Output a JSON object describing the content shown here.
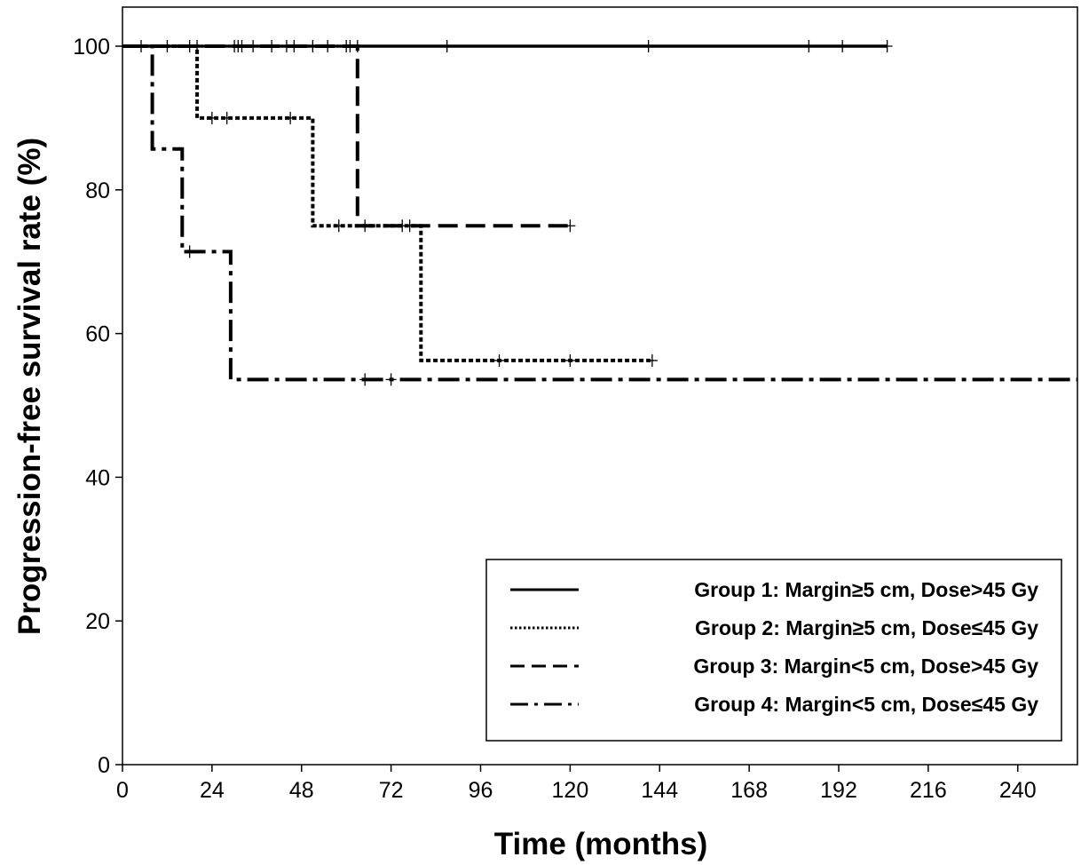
{
  "chart_data": {
    "type": "line",
    "subtype": "kaplan-meier",
    "title": "",
    "xlabel": "Time (months)",
    "ylabel": "Progression-free survival rate (%)",
    "xlim": [
      0,
      256
    ],
    "ylim": [
      0,
      105
    ],
    "xticks": [
      0,
      24,
      48,
      72,
      96,
      120,
      144,
      168,
      192,
      216,
      240
    ],
    "yticks": [
      0,
      20,
      40,
      60,
      80,
      100
    ],
    "grid": false,
    "legend_position": "bottom-right",
    "series": [
      {
        "name": "Group 1: Margin≥5 cm, Dose>45 Gy",
        "line_style": "solid",
        "color": "#000000",
        "steps": [
          [
            0,
            100
          ],
          [
            205,
            100
          ]
        ],
        "censored": [
          [
            5,
            100
          ],
          [
            12,
            100
          ],
          [
            18,
            100
          ],
          [
            20,
            100
          ],
          [
            30,
            100
          ],
          [
            31,
            100
          ],
          [
            32,
            100
          ],
          [
            35,
            100
          ],
          [
            40,
            100
          ],
          [
            44,
            100
          ],
          [
            46,
            100
          ],
          [
            51,
            100
          ],
          [
            55,
            100
          ],
          [
            60,
            100
          ],
          [
            61,
            100
          ],
          [
            63,
            100
          ],
          [
            87,
            100
          ],
          [
            141,
            100
          ],
          [
            184,
            100
          ],
          [
            193,
            100
          ],
          [
            205,
            100
          ]
        ]
      },
      {
        "name": "Group 2: Margin≥5 cm, Dose≤45 Gy",
        "line_style": "dotted",
        "color": "#000000",
        "steps": [
          [
            0,
            100
          ],
          [
            20,
            100
          ],
          [
            20,
            90
          ],
          [
            51,
            90
          ],
          [
            51,
            75
          ],
          [
            80,
            75
          ],
          [
            80,
            56.25
          ],
          [
            142,
            56.25
          ]
        ],
        "censored": [
          [
            24,
            90
          ],
          [
            28,
            90
          ],
          [
            45,
            90
          ],
          [
            58,
            75
          ],
          [
            75,
            75
          ],
          [
            101,
            56.25
          ],
          [
            120,
            56.25
          ],
          [
            142,
            56.25
          ]
        ]
      },
      {
        "name": "Group 3: Margin<5 cm, Dose>45 Gy",
        "line_style": "dashed",
        "color": "#000000",
        "steps": [
          [
            0,
            100
          ],
          [
            63,
            100
          ],
          [
            63,
            75
          ],
          [
            121,
            75
          ]
        ],
        "censored": [
          [
            65,
            75
          ],
          [
            77,
            75
          ],
          [
            120,
            75
          ]
        ]
      },
      {
        "name": "Group 4: Margin<5 cm, Dose≤45 Gy",
        "line_style": "dash-dot",
        "color": "#000000",
        "steps": [
          [
            0,
            100
          ],
          [
            8,
            100
          ],
          [
            8,
            85.7
          ],
          [
            16,
            85.7
          ],
          [
            16,
            71.4
          ],
          [
            29,
            71.4
          ],
          [
            29,
            53.6
          ],
          [
            256,
            53.6
          ]
        ],
        "censored": [
          [
            18,
            71.4
          ],
          [
            65,
            53.6
          ],
          [
            72,
            53.6
          ]
        ]
      }
    ]
  }
}
